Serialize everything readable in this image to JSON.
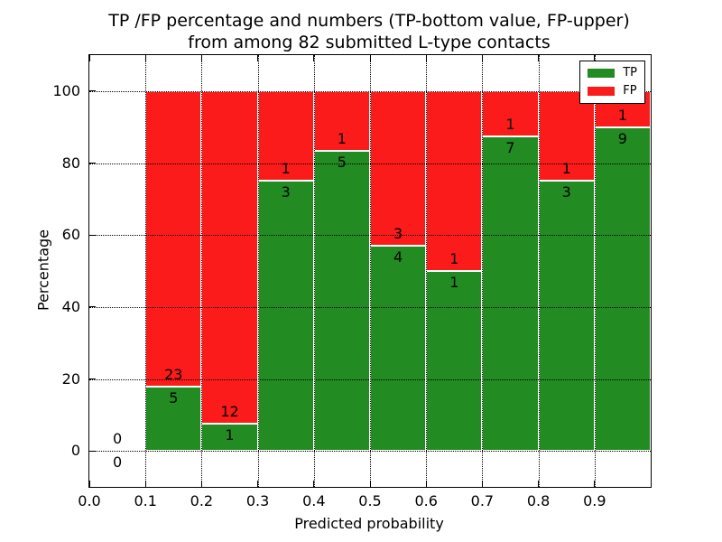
{
  "chart_data": {
    "type": "bar",
    "stacked": true,
    "title": "TP /FP percentage and numbers (TP-bottom value, FP-upper) from among 82 submitted L-type contacts",
    "title_lines": [
      "TP /FP percentage and numbers (TP-bottom value, FP-upper)",
      "from among 82 submitted L-type contacts"
    ],
    "xlabel": "Predicted probability",
    "ylabel": "Percentage",
    "xlim": [
      0.0,
      1.0
    ],
    "ylim": [
      -10,
      110
    ],
    "x_ticks": [
      "0.0",
      "0.1",
      "0.2",
      "0.3",
      "0.4",
      "0.5",
      "0.6",
      "0.7",
      "0.8",
      "0.9"
    ],
    "y_ticks": [
      "0",
      "20",
      "40",
      "60",
      "80",
      "100"
    ],
    "grid": {
      "style": "dotted",
      "color": "#000000",
      "above_bars": true
    },
    "bin_width": 0.1,
    "total_submitted": 82,
    "bins": [
      {
        "range": [
          0.0,
          0.1
        ],
        "tp": 0,
        "fp": 0,
        "tp_pct": 0.0,
        "fp_pct": 0.0
      },
      {
        "range": [
          0.1,
          0.2
        ],
        "tp": 5,
        "fp": 23,
        "tp_pct": 17.857,
        "fp_pct": 82.143
      },
      {
        "range": [
          0.2,
          0.3
        ],
        "tp": 1,
        "fp": 12,
        "tp_pct": 7.692,
        "fp_pct": 92.308
      },
      {
        "range": [
          0.3,
          0.4
        ],
        "tp": 3,
        "fp": 1,
        "tp_pct": 75.0,
        "fp_pct": 25.0
      },
      {
        "range": [
          0.4,
          0.5
        ],
        "tp": 5,
        "fp": 1,
        "tp_pct": 83.333,
        "fp_pct": 16.667
      },
      {
        "range": [
          0.5,
          0.6
        ],
        "tp": 4,
        "fp": 3,
        "tp_pct": 57.143,
        "fp_pct": 42.857
      },
      {
        "range": [
          0.6,
          0.7
        ],
        "tp": 1,
        "fp": 1,
        "tp_pct": 50.0,
        "fp_pct": 50.0
      },
      {
        "range": [
          0.7,
          0.8
        ],
        "tp": 7,
        "fp": 1,
        "tp_pct": 87.5,
        "fp_pct": 12.5
      },
      {
        "range": [
          0.8,
          0.9
        ],
        "tp": 3,
        "fp": 1,
        "tp_pct": 75.0,
        "fp_pct": 25.0
      },
      {
        "range": [
          0.9,
          1.0
        ],
        "tp": 9,
        "fp": 1,
        "tp_pct": 90.0,
        "fp_pct": 10.0
      }
    ],
    "legend": {
      "position": "upper right",
      "entries": [
        {
          "label": "TP",
          "color": "#228b22"
        },
        {
          "label": "FP",
          "color": "#fb1b1b"
        }
      ]
    },
    "colors": {
      "tp": "#228b22",
      "fp": "#fb1b1b",
      "text": "#000000",
      "background": "#ffffff",
      "bar_edge": "#ffffff"
    }
  }
}
